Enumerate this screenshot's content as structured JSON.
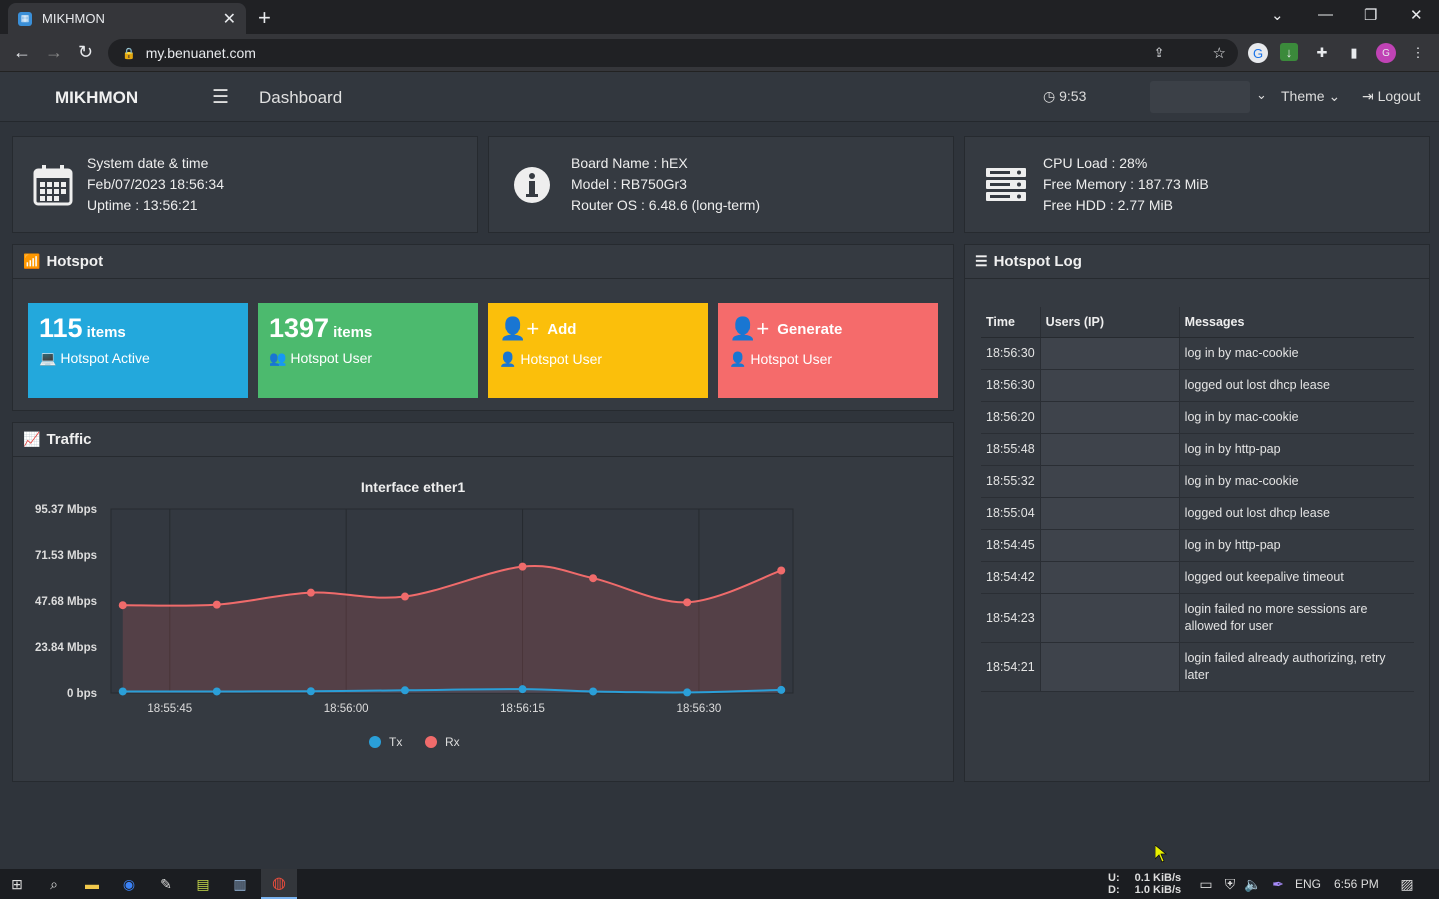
{
  "browser": {
    "tab_title": "MIKHMON",
    "url": "my.benuanet.com"
  },
  "header": {
    "brand": "MIKHMON",
    "page_title": "Dashboard",
    "clock": "9:53",
    "theme_label": "Theme",
    "logout_label": "Logout"
  },
  "system": {
    "label": "System date & time",
    "date": "Feb/07/2023 18:56:34",
    "uptime": "Uptime : 13:56:21"
  },
  "board": {
    "name": "Board Name : hEX",
    "model": "Model : RB750Gr3",
    "os": "Router OS : 6.48.6 (long-term)"
  },
  "resources": {
    "cpu": "CPU Load : 28%",
    "memory": "Free Memory : 187.73 MiB",
    "hdd": "Free HDD : 2.77 MiB"
  },
  "hotspot": {
    "title": "Hotspot",
    "tiles": [
      {
        "big": "115",
        "unit": "items",
        "sub": "Hotspot Active",
        "color": "#23a8dc"
      },
      {
        "big": "1397",
        "unit": "items",
        "sub": "Hotspot User",
        "color": "#4cba6e"
      },
      {
        "big": "Add",
        "sub": "Hotspot User",
        "color": "#fbbf0b"
      },
      {
        "big": "Generate",
        "sub": "Hotspot User",
        "color": "#f56b6b"
      }
    ]
  },
  "traffic": {
    "title": "Traffic"
  },
  "chart_data": {
    "type": "line",
    "title": "Interface ether1",
    "x": [
      "18:55:41",
      "18:55:49",
      "18:55:57",
      "18:56:05",
      "18:56:15",
      "18:56:21",
      "18:56:29",
      "18:56:37"
    ],
    "xticks": [
      "18:55:45",
      "18:56:00",
      "18:56:15",
      "18:56:30"
    ],
    "yticks": [
      "0 bps",
      "23.84 Mbps",
      "47.68 Mbps",
      "71.53 Mbps",
      "95.37 Mbps"
    ],
    "ylim": [
      0,
      95.37
    ],
    "series": [
      {
        "name": "Tx",
        "color": "#2a9fd8",
        "values": [
          0.8,
          0.8,
          0.9,
          1.4,
          2.0,
          0.8,
          0.3,
          1.6
        ]
      },
      {
        "name": "Rx",
        "color": "#f06b6b",
        "values": [
          45.5,
          45.8,
          52.0,
          50.0,
          65.5,
          59.5,
          47.0,
          63.5
        ]
      }
    ]
  },
  "log": {
    "title": "Hotspot Log",
    "columns": [
      "Time",
      "Users (IP)",
      "Messages"
    ],
    "rows": [
      {
        "time": "18:56:30",
        "msg": "log in by mac-cookie"
      },
      {
        "time": "18:56:30",
        "msg": "logged out lost dhcp lease"
      },
      {
        "time": "18:56:20",
        "msg": "log in by mac-cookie"
      },
      {
        "time": "18:55:48",
        "msg": "log in by http-pap"
      },
      {
        "time": "18:55:32",
        "msg": "log in by mac-cookie"
      },
      {
        "time": "18:55:04",
        "msg": "logged out lost dhcp lease"
      },
      {
        "time": "18:54:45",
        "msg": "log in by http-pap"
      },
      {
        "time": "18:54:42",
        "msg": "logged out keepalive timeout"
      },
      {
        "time": "18:54:23",
        "msg": "login failed no more sessions are allowed for user"
      },
      {
        "time": "18:54:21",
        "msg": "login failed already authorizing, retry later"
      }
    ]
  },
  "taskbar": {
    "upload": "0.1 KiB/s",
    "download": "1.0 KiB/s",
    "up_label": "U:",
    "down_label": "D:",
    "lang": "ENG",
    "time": "6:56 PM"
  }
}
